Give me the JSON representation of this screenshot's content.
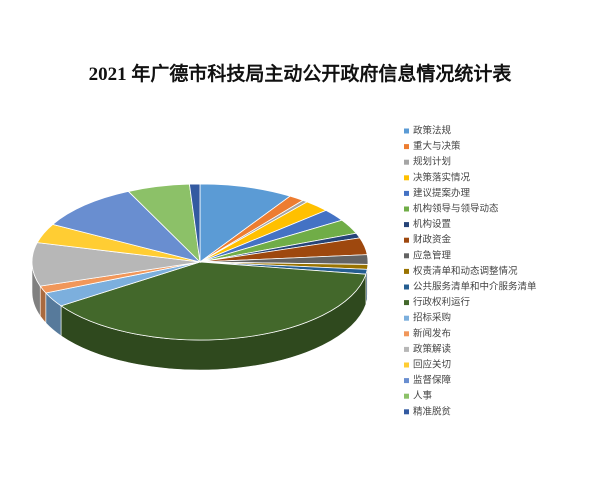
{
  "chart_data": {
    "type": "pie3d",
    "title": "2021 年广德市科技局主动公开政府信息情况统计表",
    "categories": [
      "政策法规",
      "重大与决策",
      "规划计划",
      "决策落实情况",
      "建议提案办理",
      "机构领导与领导动态",
      "机构设置",
      "财政资金",
      "应急管理",
      "权责清单和动态调整情况",
      "公共服务清单和中介服务清单",
      "行政权利运行",
      "招标采购",
      "新闻发布",
      "政策解读",
      "回应关切",
      "监督保障",
      "人事",
      "精准脱贫"
    ],
    "values": [
      9,
      1.5,
      0.5,
      2.5,
      2.5,
      3,
      1,
      3.5,
      2,
      1,
      1,
      38,
      3,
      1.5,
      9,
      4,
      10,
      6,
      1
    ],
    "colors": [
      "#5b9bd5",
      "#ed7d31",
      "#a5a5a5",
      "#ffc000",
      "#4472c4",
      "#70ad47",
      "#264478",
      "#9e480e",
      "#636363",
      "#997300",
      "#255e91",
      "#43682b",
      "#7cafdd",
      "#f1975a",
      "#b7b7b7",
      "#ffcd33",
      "#698ed0",
      "#8cc168",
      "#335aa1"
    ]
  }
}
